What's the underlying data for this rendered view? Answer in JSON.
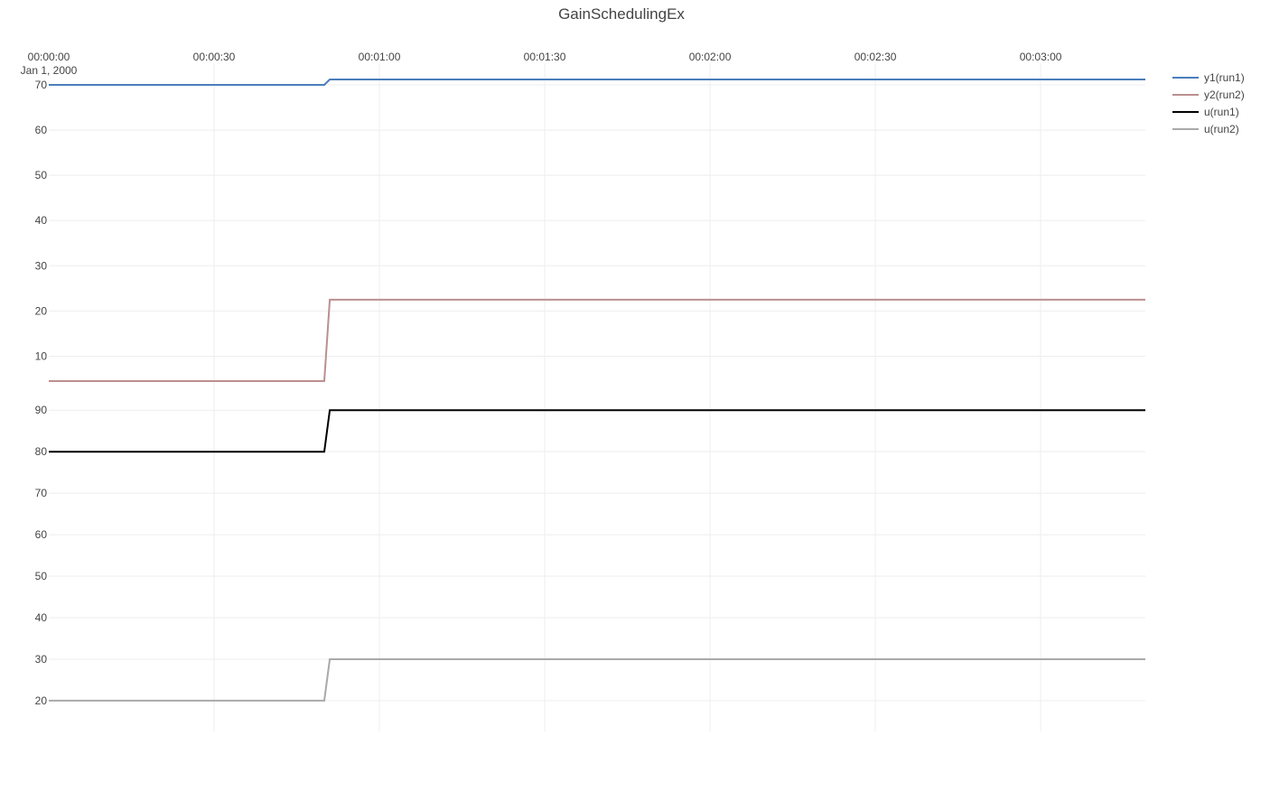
{
  "chart_data": {
    "type": "line",
    "title": "GainSchedulingEx",
    "x_axis": {
      "ticks": [
        "00:00:00",
        "00:00:30",
        "00:01:00",
        "00:01:30",
        "00:02:00",
        "00:02:30",
        "00:03:00"
      ],
      "date_label": "Jan 1, 2000",
      "range_seconds": [
        0,
        199
      ],
      "position": "top",
      "grid": true
    },
    "subplots": [
      {
        "yticks": [
          10,
          20,
          30,
          40,
          50,
          60,
          70
        ],
        "ylim": [
          4.5,
          71.2
        ],
        "series": [
          {
            "name": "y1(run1)",
            "color": "#4a7eba",
            "x": [
              0,
              50,
              51,
              199
            ],
            "values": [
              70,
              70,
              71.2,
              71.2
            ]
          },
          {
            "name": "y2(run2)",
            "color": "#bc8f8f",
            "x": [
              0,
              50,
              51,
              199
            ],
            "values": [
              4.5,
              4.5,
              22.5,
              22.5
            ]
          }
        ]
      },
      {
        "yticks": [
          20,
          30,
          40,
          50,
          60,
          70,
          80,
          90
        ],
        "ylim": [
          16.5,
          92
        ],
        "series": [
          {
            "name": "u(run1)",
            "color": "#000000",
            "x": [
              0,
              50,
              51,
              199
            ],
            "values": [
              80,
              80,
              90,
              90
            ]
          },
          {
            "name": "u(run2)",
            "color": "#a9a9a9",
            "x": [
              0,
              50,
              51,
              199
            ],
            "values": [
              20,
              20,
              30,
              30
            ]
          }
        ]
      }
    ],
    "legend": {
      "placement": "top-right",
      "entries": [
        {
          "name": "y1(run1)",
          "color": "#4a7eba"
        },
        {
          "name": "y2(run2)",
          "color": "#bc8f8f"
        },
        {
          "name": "u(run1)",
          "color": "#000000"
        },
        {
          "name": "u(run2)",
          "color": "#a9a9a9"
        }
      ]
    }
  }
}
